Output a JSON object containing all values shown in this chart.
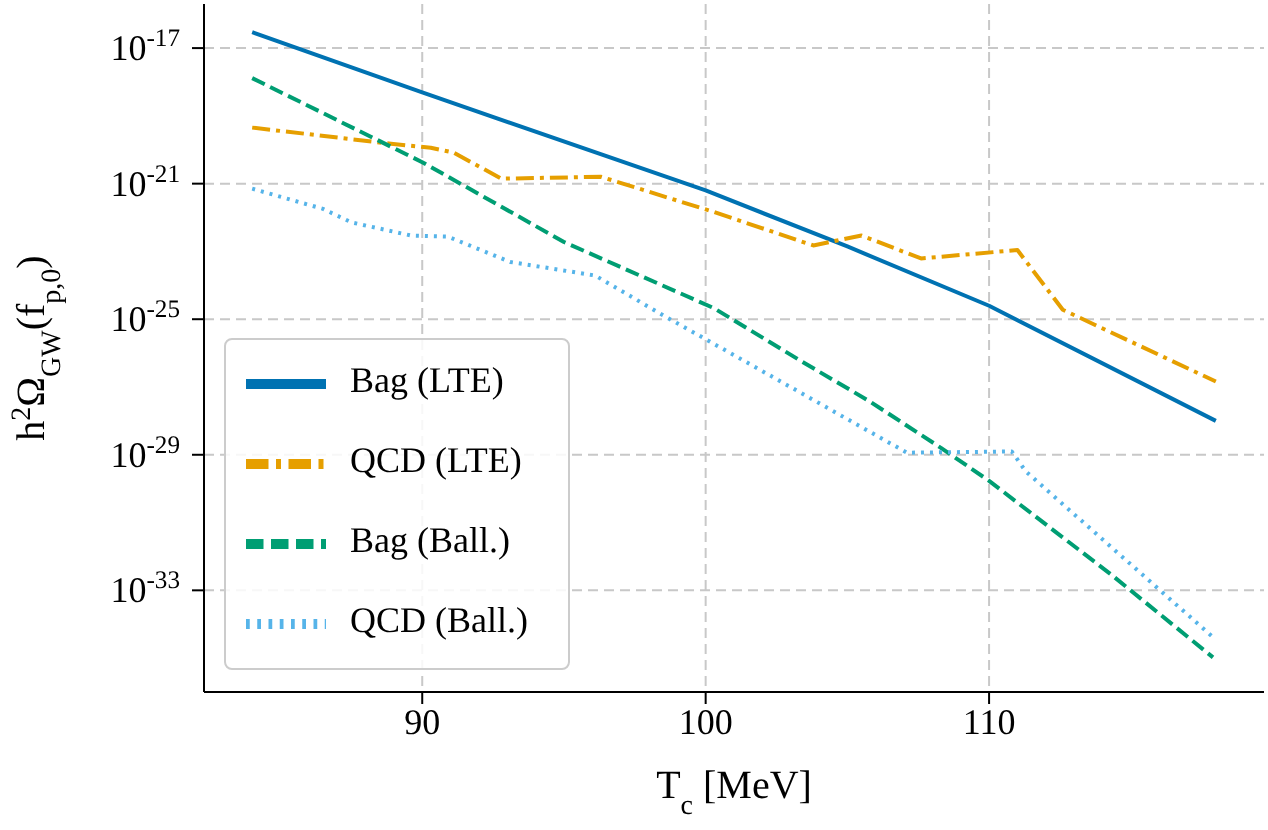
{
  "chart_data": {
    "type": "line",
    "xlabel": "T$_{c}$ [MeV]",
    "ylabel": "h$^{2}$Ω$_{GW}$(f$_{p,0}$)",
    "xlim": [
      82.3,
      119.7
    ],
    "xticks": [
      90,
      100,
      110
    ],
    "ylim": [
      1e-36,
      2e-16
    ],
    "yticks": [
      {
        "value": 1e-33,
        "label": "10$^{-33}$"
      },
      {
        "value": 1e-29,
        "label": "10$^{-29}$"
      },
      {
        "value": 1e-25,
        "label": "10$^{-25}$"
      },
      {
        "value": 1e-21,
        "label": "10$^{-21}$"
      },
      {
        "value": 1e-17,
        "label": "10$^{-17}$"
      }
    ],
    "log": "y",
    "grid": true,
    "legend": "bottom left",
    "series": [
      {
        "name": "Bag (LTE)",
        "color": "#0072b2",
        "line_style": "solid",
        "x": [
          84,
          90,
          100,
          105,
          110,
          118
        ],
        "values": [
          2.95e-17,
          4.9e-19,
          6.3e-22,
          1.4e-23,
          2.5e-25,
          1e-28
        ]
      },
      {
        "name": "QCD (LTE)",
        "color": "#e69f00",
        "line_style": "dashdot",
        "x": [
          84,
          88.9,
          90.3,
          91.1,
          92.8,
          96.3,
          100.3,
          103.8,
          105.5,
          107.6,
          111,
          112.6,
          118
        ],
        "values": [
          4.5e-20,
          1.5e-20,
          1.15e-20,
          8.3e-21,
          1.4e-21,
          1.6e-21,
          1.45e-22,
          1.5e-23,
          2.95e-23,
          6.2e-24,
          1.1e-23,
          1.9e-25,
          1.45e-27
        ]
      },
      {
        "name": "Bag (Ball.)",
        "color": "#009e73",
        "line_style": "dashed",
        "x": [
          84,
          90,
          95,
          100.3,
          103.4,
          105.8,
          108.3,
          110,
          114.3,
          117.9
        ],
        "values": [
          1.3e-18,
          4.3e-21,
          1.9e-23,
          2.1e-25,
          5.6e-27,
          3.7e-28,
          1.6e-29,
          1.7e-30,
          2.95e-33,
          1.05e-35
        ]
      },
      {
        "name": "QCD (Ball.)",
        "color": "#56b4e9",
        "line_style": "dotted",
        "x": [
          84,
          86.5,
          87.5,
          89.6,
          90.9,
          93.1,
          96.1,
          98.5,
          101,
          107.1,
          110.8,
          111.3,
          118
        ],
        "values": [
          7.1e-22,
          1.8e-22,
          7.2e-23,
          2.95e-23,
          2.75e-23,
          4.9e-24,
          1.95e-24,
          1.3e-25,
          8.7e-27,
          1.15e-29,
          1.25e-29,
          3.2e-30,
          3.5e-35
        ]
      }
    ]
  }
}
